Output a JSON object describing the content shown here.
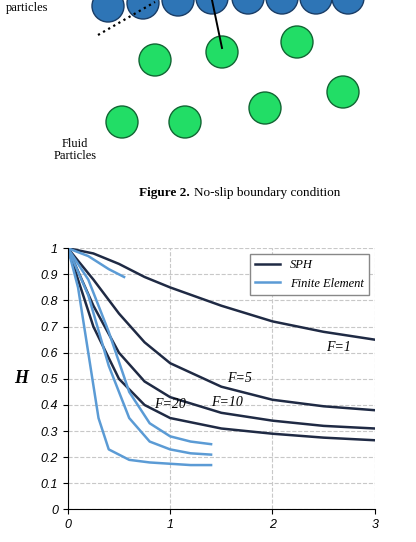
{
  "diagram": {
    "wall_label": "particles",
    "fluid_label": "Fluid Particles",
    "caption": {
      "label": "Figure 2.",
      "text": "No-slip boundary condition"
    }
  },
  "chart_data": {
    "type": "line",
    "y_label": "H",
    "xlim": [
      0,
      3
    ],
    "xticks": [
      0,
      1,
      2,
      3
    ],
    "ylim": [
      0,
      1
    ],
    "yticks": [
      0,
      0.1,
      0.2,
      0.3,
      0.4,
      0.5,
      0.6,
      0.7,
      0.8,
      0.9,
      1
    ],
    "grid": true,
    "legend": "upper right",
    "series": [
      {
        "name": "SPH",
        "color": "#1f2a44",
        "x": [
          0,
          0.25,
          0.5,
          0.75,
          1,
          1.5,
          2,
          2.5,
          3
        ],
        "values": [
          1,
          0.98,
          0.94,
          0.89,
          0.85,
          0.78,
          0.72,
          0.68,
          0.65
        ]
      },
      {
        "name": "SPH",
        "color": "#1f2a44",
        "x": [
          0,
          0.25,
          0.5,
          0.75,
          1,
          1.5,
          2,
          2.5,
          3
        ],
        "values": [
          1,
          0.88,
          0.75,
          0.64,
          0.56,
          0.47,
          0.42,
          0.395,
          0.38
        ]
      },
      {
        "name": "SPH",
        "color": "#1f2a44",
        "x": [
          0,
          0.25,
          0.5,
          0.75,
          1,
          1.5,
          2,
          2.5,
          3
        ],
        "values": [
          1,
          0.78,
          0.6,
          0.49,
          0.43,
          0.37,
          0.34,
          0.32,
          0.31
        ]
      },
      {
        "name": "SPH",
        "color": "#1f2a44",
        "x": [
          0,
          0.25,
          0.5,
          0.75,
          1,
          1.5,
          2,
          2.5,
          3
        ],
        "values": [
          1,
          0.7,
          0.5,
          0.4,
          0.35,
          0.31,
          0.29,
          0.275,
          0.265
        ]
      },
      {
        "name": "Finite Element",
        "color": "#5b9bd5",
        "x": [
          0,
          0.2,
          0.4,
          0.55
        ],
        "values": [
          1,
          0.97,
          0.92,
          0.89
        ]
      },
      {
        "name": "Finite Element",
        "color": "#5b9bd5",
        "x": [
          0,
          0.2,
          0.4,
          0.6,
          0.8,
          1,
          1.2,
          1.4
        ],
        "values": [
          1,
          0.88,
          0.68,
          0.45,
          0.33,
          0.28,
          0.26,
          0.25
        ]
      },
      {
        "name": "Finite Element",
        "color": "#5b9bd5",
        "x": [
          0,
          0.2,
          0.4,
          0.6,
          0.8,
          1,
          1.2,
          1.4
        ],
        "values": [
          1,
          0.82,
          0.55,
          0.35,
          0.26,
          0.23,
          0.215,
          0.21
        ]
      },
      {
        "name": "Finite Element",
        "color": "#5b9bd5",
        "x": [
          0,
          0.1,
          0.2,
          0.3,
          0.4,
          0.6,
          0.8,
          1,
          1.2,
          1.4
        ],
        "values": [
          1,
          0.85,
          0.6,
          0.35,
          0.23,
          0.19,
          0.18,
          0.175,
          0.17,
          0.17
        ]
      }
    ],
    "annotations": [
      {
        "text": "F=1",
        "x": 2.65,
        "y": 0.62
      },
      {
        "text": "F=5",
        "x": 1.68,
        "y": 0.5
      },
      {
        "text": "F=10",
        "x": 1.56,
        "y": 0.41
      },
      {
        "text": "F=20",
        "x": 1.0,
        "y": 0.4
      }
    ]
  }
}
